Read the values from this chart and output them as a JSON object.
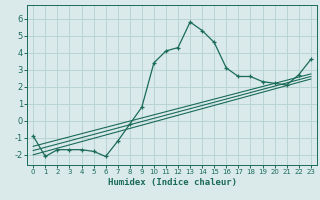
{
  "xlabel": "Humidex (Indice chaleur)",
  "bg_color": "#daeaea",
  "grid_color": "#b8d4d4",
  "line_color": "#1a6b5a",
  "xlim": [
    -0.5,
    23.5
  ],
  "ylim": [
    -2.6,
    6.8
  ],
  "xticks": [
    0,
    1,
    2,
    3,
    4,
    5,
    6,
    7,
    8,
    9,
    10,
    11,
    12,
    13,
    14,
    15,
    16,
    17,
    18,
    19,
    20,
    21,
    22,
    23
  ],
  "yticks": [
    -2,
    -1,
    0,
    1,
    2,
    3,
    4,
    5,
    6
  ],
  "main_x": [
    0,
    1,
    2,
    3,
    4,
    5,
    6,
    7,
    8,
    9,
    10,
    11,
    12,
    13,
    14,
    15,
    16,
    17,
    18,
    19,
    20,
    21,
    22,
    23
  ],
  "main_y": [
    -0.9,
    -2.1,
    -1.7,
    -1.7,
    -1.7,
    -1.8,
    -2.1,
    -1.2,
    -0.2,
    0.8,
    3.4,
    4.1,
    4.3,
    5.8,
    5.3,
    4.6,
    3.1,
    2.6,
    2.6,
    2.3,
    2.2,
    2.1,
    2.7,
    3.6
  ],
  "line2_x": [
    0,
    23
  ],
  "line2_y": [
    -2.0,
    2.45
  ],
  "line3_x": [
    0,
    23
  ],
  "line3_y": [
    -1.75,
    2.6
  ],
  "line4_x": [
    0,
    23
  ],
  "line4_y": [
    -1.5,
    2.75
  ]
}
